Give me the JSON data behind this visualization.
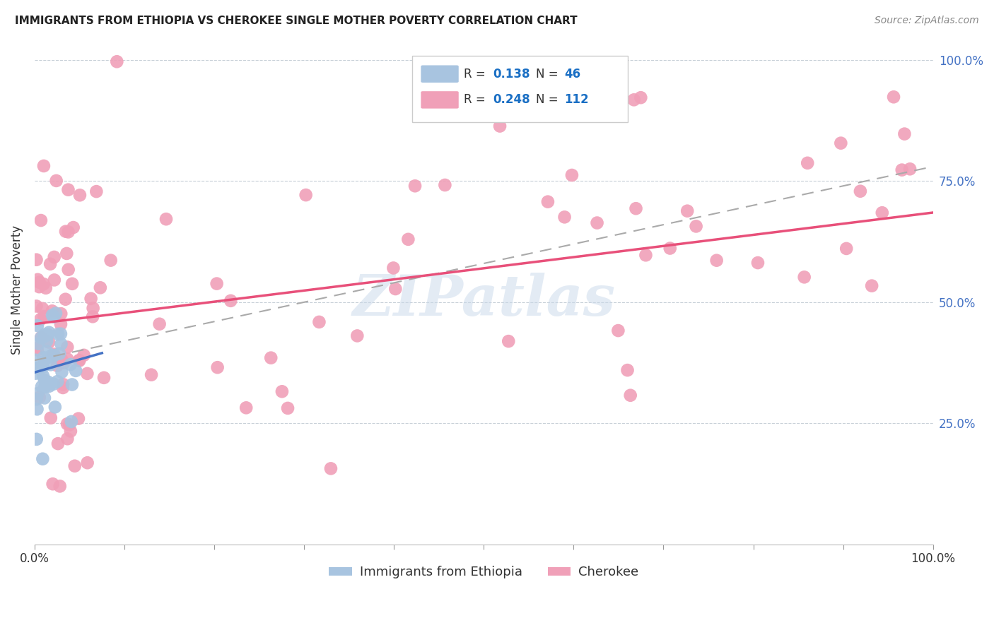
{
  "title": "IMMIGRANTS FROM ETHIOPIA VS CHEROKEE SINGLE MOTHER POVERTY CORRELATION CHART",
  "source": "Source: ZipAtlas.com",
  "ylabel": "Single Mother Poverty",
  "watermark": "ZIPatlas",
  "color_ethiopia": "#a8c4e0",
  "color_cherokee": "#f0a0b8",
  "color_line_ethiopia": "#4472c4",
  "color_line_cherokee": "#e8507a",
  "color_trend_dashed": "#aaaaaa",
  "background_color": "#ffffff",
  "xlim": [
    0.0,
    1.0
  ],
  "ylim": [
    0.0,
    1.05
  ],
  "legend_r1": "0.138",
  "legend_n1": "46",
  "legend_r2": "0.248",
  "legend_n2": "112",
  "eth_line_x0": 0.0,
  "eth_line_x1": 0.075,
  "eth_line_y0": 0.355,
  "eth_line_y1": 0.395,
  "cher_line_x0": 0.0,
  "cher_line_x1": 1.0,
  "cher_line_y0": 0.455,
  "cher_line_y1": 0.685,
  "dash_line_x0": 0.0,
  "dash_line_x1": 1.0,
  "dash_line_y0": 0.38,
  "dash_line_y1": 0.78
}
